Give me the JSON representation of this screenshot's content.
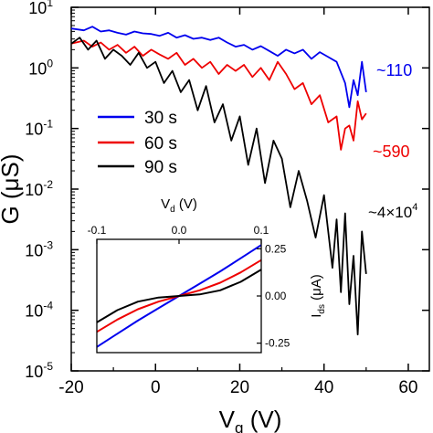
{
  "chart_data": [
    {
      "type": "line",
      "xlabel": "V",
      "xlabel_sub": "g",
      "xlabel_unit": "(V)",
      "ylabel": "G (μS)",
      "x_ticks": [
        "-20",
        "0",
        "20",
        "40",
        "60"
      ],
      "y_ticks": [
        {
          "base": "10",
          "exp": "1"
        },
        {
          "base": "10",
          "exp": "0"
        },
        {
          "base": "10",
          "exp": "-1"
        },
        {
          "base": "10",
          "exp": "-2"
        },
        {
          "base": "10",
          "exp": "-3"
        },
        {
          "base": "10",
          "exp": "-4"
        },
        {
          "base": "10",
          "exp": "-5"
        }
      ],
      "xlim": [
        -20,
        65
      ],
      "ylim_log10": [
        -5,
        1
      ],
      "y_scale": "log",
      "grid": false,
      "legend_position": "center-left",
      "series": [
        {
          "name": "30 s",
          "color": "#0000ee",
          "x": [
            -20,
            -17,
            -15,
            -13,
            -11,
            -9,
            -7,
            -5,
            -3,
            -1,
            1,
            3,
            5,
            7,
            9,
            11,
            13,
            15,
            17,
            19,
            21,
            23,
            25,
            27,
            29,
            31,
            33,
            35,
            37,
            39,
            41,
            43,
            45,
            46,
            47,
            48,
            49,
            50
          ],
          "y_log10": [
            0.65,
            0.62,
            0.68,
            0.6,
            0.62,
            0.58,
            0.55,
            0.6,
            0.57,
            0.56,
            0.53,
            0.58,
            0.5,
            0.54,
            0.48,
            0.5,
            0.46,
            0.5,
            0.42,
            0.35,
            0.38,
            0.3,
            0.36,
            0.28,
            0.2,
            0.3,
            0.24,
            0.3,
            0.15,
            0.26,
            0.18,
            0.1,
            -0.25,
            -0.65,
            -0.2,
            -0.45,
            0.1,
            -0.4
          ]
        },
        {
          "name": "60 s",
          "color": "#ee0000",
          "x": [
            -20,
            -17,
            -15,
            -13,
            -11,
            -9,
            -7,
            -5,
            -3,
            -1,
            1,
            3,
            5,
            7,
            9,
            11,
            13,
            15,
            17,
            19,
            21,
            23,
            25,
            27,
            29,
            31,
            33,
            35,
            37,
            39,
            41,
            43,
            44,
            45,
            46,
            47,
            48,
            49,
            50
          ],
          "y_log10": [
            0.4,
            0.45,
            0.35,
            0.42,
            0.3,
            0.38,
            0.25,
            0.35,
            0.2,
            0.3,
            0.22,
            0.15,
            0.25,
            0.05,
            0.15,
            0.0,
            0.1,
            -0.1,
            0.05,
            -0.05,
            0.05,
            -0.15,
            0.0,
            -0.2,
            0.1,
            -0.1,
            -0.35,
            -0.25,
            -0.6,
            -0.45,
            -0.9,
            -0.8,
            -1.35,
            -1.0,
            -0.95,
            -1.2,
            -0.55,
            -0.85,
            -0.75
          ]
        },
        {
          "name": "90 s",
          "color": "#000000",
          "x": [
            -20,
            -18,
            -16,
            -14,
            -12,
            -10,
            -8,
            -6,
            -4,
            -2,
            0,
            2,
            4,
            6,
            8,
            10,
            12,
            14,
            16,
            18,
            20,
            22,
            24,
            26,
            28,
            30,
            32,
            34,
            36,
            38,
            40,
            42,
            43,
            44,
            45,
            46,
            47,
            48,
            49,
            50
          ],
          "y_log10": [
            0.4,
            0.5,
            0.3,
            0.45,
            0.15,
            0.3,
            0.2,
            0.05,
            0.25,
            0.0,
            0.1,
            -0.25,
            -0.05,
            -0.4,
            -0.2,
            -0.7,
            -0.3,
            -0.9,
            -0.6,
            -1.2,
            -0.8,
            -1.6,
            -1.0,
            -1.9,
            -1.2,
            -1.5,
            -2.3,
            -1.7,
            -2.2,
            -2.8,
            -2.1,
            -3.3,
            -2.5,
            -3.7,
            -2.4,
            -3.9,
            -3.1,
            -4.4,
            -2.7,
            -3.4
          ]
        }
      ],
      "annotations": [
        {
          "text": "~110",
          "color": "#0000ee"
        },
        {
          "text": "~590",
          "color": "#ee0000"
        },
        {
          "text": "~4×10",
          "sup": "4",
          "color": "#000000"
        }
      ]
    },
    {
      "type": "line",
      "xlabel": "V",
      "xlabel_sub": "d",
      "xlabel_unit": "(V)",
      "ylabel": "I",
      "ylabel_sub": "ds",
      "ylabel_unit": "(μA)",
      "x_ticks": [
        "-0.1",
        "0.0",
        "0.1"
      ],
      "y_ticks": [
        "0.25",
        "0.00",
        "-0.25"
      ],
      "xlim": [
        -0.1,
        0.1
      ],
      "ylim": [
        -0.3,
        0.3
      ],
      "series": [
        {
          "color": "#0000ee",
          "x": [
            -0.1,
            -0.075,
            -0.05,
            -0.025,
            0,
            0.025,
            0.05,
            0.075,
            0.1
          ],
          "y": [
            -0.27,
            -0.2,
            -0.13,
            -0.065,
            0,
            0.065,
            0.13,
            0.2,
            0.27
          ]
        },
        {
          "color": "#ee0000",
          "x": [
            -0.1,
            -0.075,
            -0.05,
            -0.025,
            0,
            0.025,
            0.05,
            0.075,
            0.1
          ],
          "y": [
            -0.19,
            -0.125,
            -0.07,
            -0.03,
            0,
            0.03,
            0.07,
            0.125,
            0.19
          ]
        },
        {
          "color": "#000000",
          "x": [
            -0.1,
            -0.075,
            -0.05,
            -0.025,
            0,
            0.025,
            0.05,
            0.075,
            0.1
          ],
          "y": [
            -0.14,
            -0.075,
            -0.03,
            -0.008,
            0,
            0.008,
            0.03,
            0.075,
            0.14
          ]
        }
      ]
    }
  ]
}
